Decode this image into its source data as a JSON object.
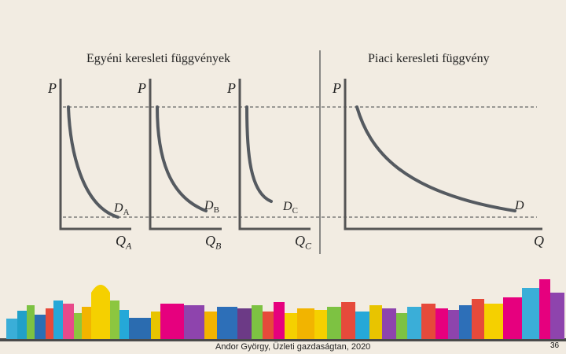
{
  "titles": {
    "individual": "Egyéni keresleti függvények",
    "market": "Piaci keresleti függvény"
  },
  "axes": {
    "p": "P",
    "q_a": "Q",
    "q_a_sub": "A",
    "q_b": "Q",
    "q_b_sub": "B",
    "q_c": "Q",
    "q_c_sub": "C",
    "q": "Q"
  },
  "curves": {
    "a": "D",
    "a_sub": "A",
    "b": "D",
    "b_sub": "B",
    "c": "D",
    "c_sub": "C",
    "market": "D"
  },
  "footer": {
    "credit": "Andor György, Üzleti gazdaságtan, 2020",
    "page": "36"
  },
  "colors": {
    "background": "#f2ece2",
    "axis": "#555555",
    "curve": "#555a60",
    "dashed": "#666666"
  }
}
